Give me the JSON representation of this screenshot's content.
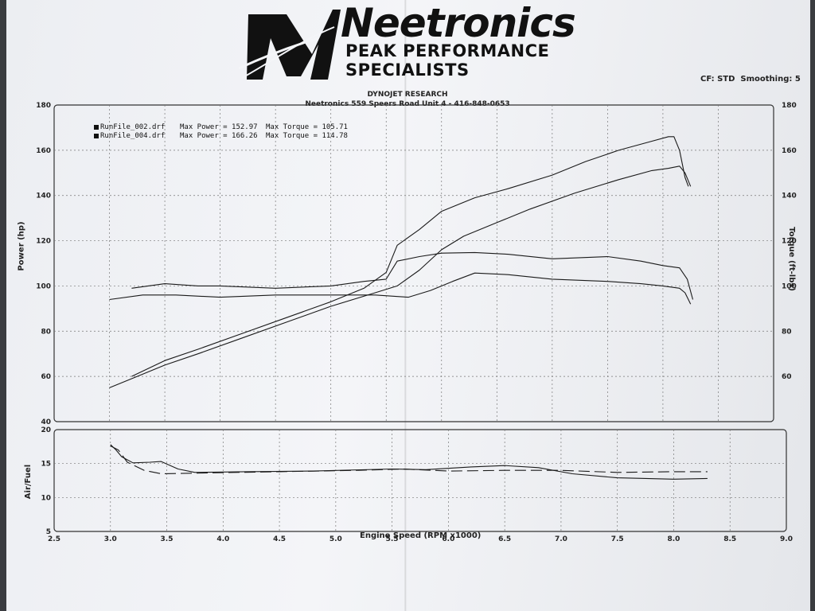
{
  "logo": {
    "name": "Neetronics",
    "tagline": "PEAK PERFORMANCE SPECIALISTS"
  },
  "header": {
    "cf": "CF: STD",
    "smoothing": "Smoothing: 5"
  },
  "chart_title": {
    "line1": "DYNOJET RESEARCH",
    "line2": "Neetronics 559 Speers Road Unit 4 - 416-848-0653"
  },
  "legend": [
    {
      "file": "RunFile_002.drf",
      "power_label": "Max Power = 152.97",
      "torque_label": "Max Torque = 105.71"
    },
    {
      "file": "RunFile_004.drf",
      "power_label": "Max Power = 166.26",
      "torque_label": "Max Torque = 114.78"
    }
  ],
  "chart_data": [
    {
      "type": "line",
      "title": "DYNOJET RESEARCH",
      "xlabel": "Engine Speed (RPM x1000)",
      "ylabel": "Power (hp)",
      "y2label": "Torque (ft-lbs)",
      "xlim": [
        2.5,
        9.0
      ],
      "ylim": [
        40,
        180
      ],
      "y2lim": [
        40,
        180
      ],
      "x_ticks": [
        "2.5",
        "3.0",
        "3.5",
        "4.0",
        "4.5",
        "5.0",
        "5.5",
        "6.0",
        "6.5",
        "7.0",
        "7.5",
        "8.0",
        "8.5",
        "9.0"
      ],
      "y_ticks": [
        "40",
        "60",
        "80",
        "100",
        "120",
        "140",
        "160",
        "180"
      ],
      "y2_ticks": [
        "60",
        "80",
        "100",
        "120",
        "140",
        "160",
        "180"
      ],
      "grid": true,
      "legend_position": "top-left",
      "series": [
        {
          "name": "RunFile_002.drf Power",
          "values": [
            [
              3.0,
              55
            ],
            [
              3.2,
              59
            ],
            [
              3.5,
              65
            ],
            [
              3.8,
              70
            ],
            [
              4.2,
              77
            ],
            [
              4.6,
              84
            ],
            [
              5.0,
              91
            ],
            [
              5.4,
              97
            ],
            [
              5.6,
              100
            ],
            [
              5.8,
              107
            ],
            [
              6.0,
              116
            ],
            [
              6.2,
              122
            ],
            [
              6.5,
              128
            ],
            [
              6.8,
              134
            ],
            [
              7.2,
              141
            ],
            [
              7.6,
              147
            ],
            [
              7.9,
              151
            ],
            [
              8.05,
              152
            ],
            [
              8.15,
              153
            ],
            [
              8.2,
              150
            ],
            [
              8.25,
              144
            ]
          ]
        },
        {
          "name": "RunFile_004.drf Power",
          "values": [
            [
              3.2,
              60
            ],
            [
              3.5,
              67
            ],
            [
              3.8,
              72
            ],
            [
              4.2,
              79
            ],
            [
              4.6,
              86
            ],
            [
              5.0,
              93
            ],
            [
              5.3,
              99
            ],
            [
              5.5,
              106
            ],
            [
              5.6,
              118
            ],
            [
              5.8,
              125
            ],
            [
              6.0,
              133
            ],
            [
              6.3,
              139
            ],
            [
              6.6,
              143
            ],
            [
              7.0,
              149
            ],
            [
              7.3,
              155
            ],
            [
              7.6,
              160
            ],
            [
              7.9,
              164
            ],
            [
              8.05,
              166
            ],
            [
              8.1,
              166
            ],
            [
              8.15,
              160
            ],
            [
              8.2,
              148
            ],
            [
              8.23,
              144
            ]
          ]
        },
        {
          "name": "RunFile_002.drf Torque",
          "values": [
            [
              3.0,
              94
            ],
            [
              3.3,
              96
            ],
            [
              3.6,
              96
            ],
            [
              4.0,
              95
            ],
            [
              4.5,
              96
            ],
            [
              5.0,
              96
            ],
            [
              5.4,
              96
            ],
            [
              5.7,
              95
            ],
            [
              5.9,
              98
            ],
            [
              6.1,
              102
            ],
            [
              6.3,
              105.7
            ],
            [
              6.6,
              105
            ],
            [
              7.0,
              103
            ],
            [
              7.5,
              102
            ],
            [
              7.8,
              101
            ],
            [
              8.0,
              100
            ],
            [
              8.15,
              99
            ],
            [
              8.2,
              97
            ],
            [
              8.25,
              92
            ]
          ]
        },
        {
          "name": "RunFile_004.drf Torque",
          "values": [
            [
              3.2,
              99
            ],
            [
              3.5,
              101
            ],
            [
              3.8,
              100
            ],
            [
              4.0,
              100
            ],
            [
              4.5,
              99
            ],
            [
              5.0,
              100
            ],
            [
              5.3,
              102
            ],
            [
              5.5,
              103
            ],
            [
              5.6,
              111
            ],
            [
              5.8,
              113
            ],
            [
              6.0,
              114.5
            ],
            [
              6.3,
              114.8
            ],
            [
              6.6,
              114
            ],
            [
              7.0,
              112
            ],
            [
              7.5,
              113
            ],
            [
              7.8,
              111
            ],
            [
              8.0,
              109
            ],
            [
              8.15,
              108
            ],
            [
              8.22,
              103
            ],
            [
              8.27,
              94
            ]
          ]
        }
      ]
    },
    {
      "type": "line",
      "ylabel": "Air/Fuel",
      "xlim": [
        2.5,
        9.0
      ],
      "ylim": [
        5,
        20
      ],
      "y_ticks": [
        "5",
        "10",
        "15",
        "20"
      ],
      "grid": true,
      "series": [
        {
          "name": "RunFile_002.drf Air/Fuel",
          "values": [
            [
              3.0,
              17.8
            ],
            [
              3.05,
              17.0
            ],
            [
              3.1,
              16.0
            ],
            [
              3.2,
              15.1
            ],
            [
              3.35,
              15.2
            ],
            [
              3.45,
              15.3
            ],
            [
              3.6,
              14.2
            ],
            [
              3.75,
              13.7
            ],
            [
              4.2,
              13.8
            ],
            [
              4.8,
              13.9
            ],
            [
              5.5,
              14.2
            ],
            [
              5.8,
              14.1
            ],
            [
              6.2,
              14.5
            ],
            [
              6.5,
              14.7
            ],
            [
              6.8,
              14.4
            ],
            [
              7.1,
              13.5
            ],
            [
              7.5,
              12.9
            ],
            [
              8.0,
              12.7
            ],
            [
              8.3,
              12.8
            ]
          ]
        },
        {
          "name": "RunFile_004.drf Air/Fuel",
          "values": [
            [
              3.0,
              17.6
            ],
            [
              3.07,
              17.0
            ],
            [
              3.15,
              15.2
            ],
            [
              3.3,
              14.0
            ],
            [
              3.45,
              13.5
            ],
            [
              3.8,
              13.6
            ],
            [
              4.5,
              13.8
            ],
            [
              5.2,
              14.0
            ],
            [
              5.6,
              14.2
            ],
            [
              6.0,
              13.9
            ],
            [
              6.5,
              14.0
            ],
            [
              7.0,
              14.0
            ],
            [
              7.5,
              13.7
            ],
            [
              8.0,
              13.8
            ],
            [
              8.3,
              13.8
            ]
          ]
        }
      ]
    }
  ]
}
